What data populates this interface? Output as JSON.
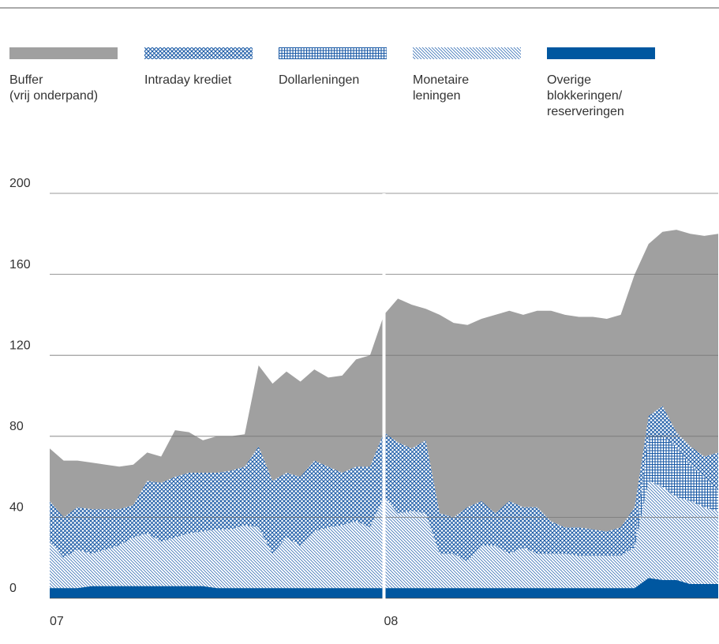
{
  "chart_data": {
    "type": "stacked_area",
    "categories": [
      "07",
      null,
      null,
      null,
      null,
      null,
      null,
      null,
      null,
      null,
      null,
      null,
      null,
      null,
      null,
      null,
      null,
      null,
      null,
      null,
      null,
      null,
      null,
      null,
      "08",
      null,
      null,
      null,
      null,
      null,
      null,
      null,
      null,
      null,
      null,
      null,
      null,
      null,
      null,
      null,
      null,
      null,
      null,
      null,
      null,
      null,
      null,
      null,
      null
    ],
    "series": [
      {
        "name": "Buffer\n(vrij onderpand)",
        "color": "#a0a0a0",
        "pattern": "solid",
        "values": [
          26,
          28,
          23,
          23,
          22,
          21,
          20,
          14,
          13,
          23,
          20,
          16,
          18,
          17,
          16,
          40,
          48,
          50,
          47,
          45,
          44,
          48,
          53,
          55,
          58,
          71,
          71,
          65,
          98,
          96,
          90,
          90,
          98,
          94,
          95,
          97,
          104,
          105,
          104,
          105,
          105,
          105,
          115,
          85,
          86,
          100,
          105,
          109,
          108
        ]
      },
      {
        "name": "Intraday krediet",
        "color": "#1a5aa6",
        "pattern": "crosshatch",
        "values": [
          20,
          20,
          21,
          22,
          20,
          18,
          16,
          26,
          29,
          30,
          30,
          29,
          28,
          29,
          29,
          40,
          36,
          32,
          34,
          35,
          30,
          26,
          27,
          30,
          32,
          35,
          31,
          36,
          20,
          18,
          27,
          22,
          16,
          26,
          20,
          23,
          16,
          13,
          14,
          13,
          12,
          14,
          18,
          10,
          15,
          7,
          9,
          10,
          19
        ]
      },
      {
        "name": "Dollarleningen",
        "color": "#1a5aa6",
        "pattern": "grid",
        "values": [
          0,
          0,
          0,
          0,
          0,
          0,
          0,
          0,
          0,
          0,
          0,
          0,
          0,
          0,
          0,
          0,
          0,
          0,
          0,
          0,
          0,
          0,
          0,
          0,
          0,
          0,
          0,
          0,
          0,
          0,
          0,
          0,
          0,
          0,
          0,
          0,
          0,
          0,
          0,
          0,
          0,
          0,
          2,
          22,
          25,
          25,
          18,
          15,
          10
        ]
      },
      {
        "name": "Monetaire\nleningen",
        "color": "#1a5aa6",
        "pattern": "diagonal",
        "values": [
          23,
          15,
          19,
          16,
          18,
          20,
          24,
          26,
          22,
          24,
          26,
          27,
          29,
          29,
          31,
          30,
          17,
          25,
          21,
          28,
          30,
          31,
          33,
          30,
          45,
          37,
          38,
          37,
          17,
          17,
          13,
          21,
          21,
          17,
          20,
          17,
          17,
          17,
          16,
          16,
          16,
          16,
          20,
          48,
          46,
          41,
          41,
          38,
          36
        ]
      },
      {
        "name": "Overige\nblokkeringen/\nreserveringen",
        "color": "#0057a0",
        "pattern": "solid",
        "values": [
          5,
          5,
          5,
          6,
          6,
          6,
          6,
          6,
          6,
          6,
          6,
          6,
          5,
          5,
          5,
          5,
          5,
          5,
          5,
          5,
          5,
          5,
          5,
          5,
          5,
          5,
          5,
          5,
          5,
          5,
          5,
          5,
          5,
          5,
          5,
          5,
          5,
          5,
          5,
          5,
          5,
          5,
          5,
          10,
          9,
          9,
          7,
          7,
          7
        ]
      }
    ],
    "ylim": [
      0,
      200
    ],
    "yticks": [
      0,
      40,
      80,
      120,
      160,
      200
    ],
    "grid": true
  }
}
